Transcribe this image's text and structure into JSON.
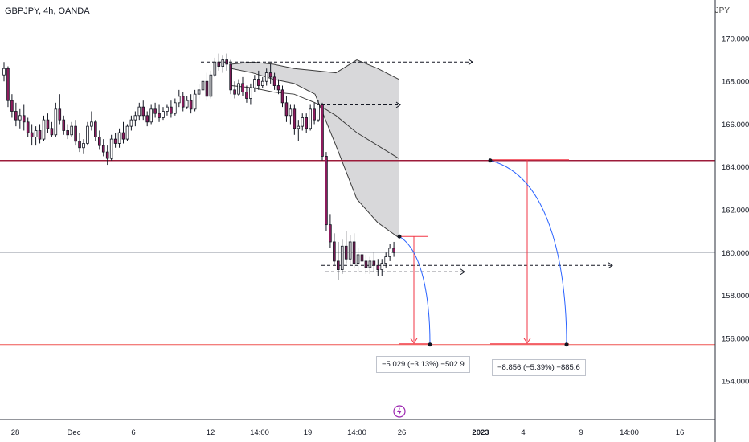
{
  "header": {
    "symbol": "GBPJPY, 4h, OANDA",
    "currency": "JPY"
  },
  "colors": {
    "candle_up": "#ffffff",
    "candle_down": "#8e1c5e",
    "candle_outline": "#131722",
    "support_line": "#ef5350",
    "resistance_line": "#9c1b3a",
    "measure_line": "#f23645",
    "arrow": "#2962ff",
    "band_fill": "#d4d4d6"
  },
  "measurements": [
    {
      "label": "−5.029 (−3.13%) −502.9"
    },
    {
      "label": "−8.856 (−5.39%) −885.6"
    }
  ],
  "chart_data": {
    "type": "candlestick",
    "title": "GBPJPY, 4h, OANDA",
    "ylabel": "JPY",
    "ylim": [
      152.2,
      171.8
    ],
    "y_ticks": [
      {
        "value": 170,
        "label": "170.000"
      },
      {
        "value": 168,
        "label": "168.000"
      },
      {
        "value": 166,
        "label": "166.000"
      },
      {
        "value": 164,
        "label": "164.000"
      },
      {
        "value": 162,
        "label": "162.000"
      },
      {
        "value": 160,
        "label": "160.000"
      },
      {
        "value": 158,
        "label": "158.000"
      },
      {
        "value": 156,
        "label": "156.000"
      },
      {
        "value": 154,
        "label": "154.000"
      }
    ],
    "x_ticks": [
      {
        "label": "28",
        "bold": false
      },
      {
        "label": "Dec",
        "bold": false
      },
      {
        "label": "6",
        "bold": false
      },
      {
        "label": "12",
        "bold": false
      },
      {
        "label": "14:00",
        "bold": false
      },
      {
        "label": "19",
        "bold": false
      },
      {
        "label": "14:00",
        "bold": false
      },
      {
        "label": "26",
        "bold": false
      },
      {
        "label": "2023",
        "bold": true
      },
      {
        "label": "4",
        "bold": false
      },
      {
        "label": "9",
        "bold": false
      },
      {
        "label": "14:00",
        "bold": false
      },
      {
        "label": "16",
        "bold": false
      }
    ],
    "horizontal_lines": [
      {
        "name": "resistance",
        "value": 164.3
      },
      {
        "name": "support",
        "value": 155.7
      },
      {
        "name": "current-price",
        "value": 160.0
      }
    ],
    "projection_band": {
      "upper": [
        168.8,
        168.9,
        168.8,
        168.6,
        168.5,
        168.4,
        169.0,
        168.6,
        168.1
      ],
      "middle": [
        167.8,
        167.7,
        167.5,
        167.4,
        167.0,
        166.4,
        165.6,
        165.0,
        164.4
      ],
      "lower": [
        168.6,
        168.4,
        168.1,
        167.9,
        167.4,
        165.0,
        162.5,
        161.4,
        160.7
      ]
    },
    "candles": [
      [
        168.3,
        168.9,
        168.0,
        168.6
      ],
      [
        168.6,
        168.7,
        166.8,
        167.1
      ],
      [
        167.1,
        167.4,
        166.3,
        166.6
      ],
      [
        166.6,
        167.0,
        165.9,
        166.2
      ],
      [
        166.2,
        166.7,
        165.8,
        166.4
      ],
      [
        166.4,
        166.9,
        165.7,
        166.1
      ],
      [
        166.1,
        166.3,
        165.4,
        165.6
      ],
      [
        165.6,
        166.0,
        165.0,
        165.4
      ],
      [
        165.4,
        165.9,
        165.0,
        165.7
      ],
      [
        165.7,
        166.0,
        165.1,
        165.3
      ],
      [
        165.3,
        166.4,
        165.2,
        166.2
      ],
      [
        166.2,
        166.5,
        165.6,
        165.8
      ],
      [
        165.8,
        166.1,
        165.4,
        165.5
      ],
      [
        165.5,
        167.0,
        165.4,
        166.7
      ],
      [
        166.7,
        167.4,
        166.0,
        166.2
      ],
      [
        166.2,
        166.4,
        165.5,
        165.7
      ],
      [
        165.7,
        166.0,
        165.3,
        165.5
      ],
      [
        165.5,
        166.1,
        165.4,
        165.9
      ],
      [
        165.9,
        166.2,
        165.0,
        165.2
      ],
      [
        165.2,
        165.6,
        164.7,
        164.9
      ],
      [
        164.9,
        165.3,
        164.6,
        165.1
      ],
      [
        165.1,
        166.1,
        165.0,
        165.9
      ],
      [
        165.9,
        166.6,
        165.7,
        166.1
      ],
      [
        166.1,
        166.2,
        165.2,
        165.4
      ],
      [
        165.4,
        165.7,
        164.8,
        165.0
      ],
      [
        165.0,
        165.3,
        164.5,
        164.7
      ],
      [
        164.7,
        165.0,
        164.1,
        164.4
      ],
      [
        164.4,
        165.5,
        164.3,
        165.3
      ],
      [
        165.3,
        165.6,
        164.9,
        165.1
      ],
      [
        165.1,
        165.8,
        164.9,
        165.6
      ],
      [
        165.6,
        166.1,
        165.1,
        165.3
      ],
      [
        165.3,
        166.0,
        165.2,
        165.9
      ],
      [
        165.9,
        166.4,
        165.7,
        166.2
      ],
      [
        166.2,
        166.6,
        165.9,
        166.4
      ],
      [
        166.4,
        167.0,
        166.2,
        166.8
      ],
      [
        166.8,
        167.1,
        166.2,
        166.4
      ],
      [
        166.4,
        166.6,
        165.9,
        166.1
      ],
      [
        166.1,
        166.9,
        166.0,
        166.7
      ],
      [
        166.7,
        167.0,
        166.3,
        166.5
      ],
      [
        166.5,
        166.9,
        166.1,
        166.3
      ],
      [
        166.3,
        166.8,
        166.2,
        166.6
      ],
      [
        166.6,
        166.9,
        166.4,
        166.8
      ],
      [
        166.8,
        167.1,
        166.3,
        166.5
      ],
      [
        166.5,
        167.2,
        166.4,
        167.0
      ],
      [
        167.0,
        167.6,
        166.8,
        167.3
      ],
      [
        167.3,
        167.5,
        166.6,
        166.8
      ],
      [
        166.8,
        167.3,
        166.7,
        167.1
      ],
      [
        167.1,
        167.4,
        166.5,
        166.7
      ],
      [
        166.7,
        167.6,
        166.6,
        167.4
      ],
      [
        167.4,
        167.9,
        167.2,
        167.6
      ],
      [
        167.6,
        168.2,
        167.4,
        168.0
      ],
      [
        168.0,
        168.4,
        167.1,
        167.3
      ],
      [
        167.3,
        168.5,
        167.2,
        168.3
      ],
      [
        168.3,
        169.1,
        168.2,
        168.9
      ],
      [
        168.9,
        169.3,
        168.5,
        168.7
      ],
      [
        168.7,
        169.2,
        168.4,
        169.0
      ],
      [
        169.0,
        169.3,
        168.5,
        168.8
      ],
      [
        168.8,
        169.0,
        167.4,
        167.6
      ],
      [
        167.6,
        168.0,
        167.2,
        167.4
      ],
      [
        167.4,
        168.1,
        167.3,
        167.9
      ],
      [
        167.9,
        168.2,
        167.3,
        167.5
      ],
      [
        167.5,
        167.8,
        167.0,
        167.2
      ],
      [
        167.2,
        167.9,
        166.9,
        167.7
      ],
      [
        167.7,
        168.3,
        167.5,
        168.1
      ],
      [
        168.1,
        168.5,
        167.6,
        167.8
      ],
      [
        167.8,
        168.2,
        167.7,
        168.0
      ],
      [
        168.0,
        168.6,
        167.8,
        168.4
      ],
      [
        168.4,
        168.8,
        167.9,
        168.2
      ],
      [
        168.2,
        168.4,
        167.6,
        167.8
      ],
      [
        167.8,
        168.1,
        167.4,
        167.6
      ],
      [
        167.6,
        167.8,
        166.8,
        167.0
      ],
      [
        167.0,
        167.3,
        166.1,
        166.4
      ],
      [
        166.4,
        166.9,
        166.0,
        166.7
      ],
      [
        166.7,
        166.9,
        165.5,
        165.8
      ],
      [
        165.8,
        166.2,
        165.2,
        165.9
      ],
      [
        165.9,
        166.5,
        165.7,
        166.3
      ],
      [
        166.3,
        166.5,
        165.6,
        165.8
      ],
      [
        165.8,
        166.9,
        165.7,
        166.7
      ],
      [
        166.7,
        167.0,
        166.0,
        166.2
      ],
      [
        166.2,
        167.1,
        166.1,
        166.9
      ],
      [
        166.9,
        167.0,
        164.3,
        164.5
      ],
      [
        164.5,
        164.7,
        161.0,
        161.3
      ],
      [
        161.3,
        161.8,
        160.2,
        160.5
      ],
      [
        160.5,
        160.9,
        159.4,
        159.6
      ],
      [
        159.6,
        160.5,
        158.7,
        159.2
      ],
      [
        159.2,
        160.6,
        159.0,
        160.3
      ],
      [
        160.3,
        161.0,
        159.5,
        159.7
      ],
      [
        159.7,
        160.8,
        159.4,
        160.5
      ],
      [
        160.5,
        160.9,
        159.3,
        159.5
      ],
      [
        159.5,
        160.2,
        159.1,
        159.9
      ],
      [
        159.9,
        160.4,
        159.4,
        159.6
      ],
      [
        159.6,
        159.9,
        159.0,
        159.3
      ],
      [
        159.3,
        159.8,
        159.0,
        159.6
      ],
      [
        159.6,
        160.0,
        159.1,
        159.4
      ],
      [
        159.4,
        159.7,
        158.9,
        159.2
      ],
      [
        159.2,
        159.7,
        158.9,
        159.5
      ],
      [
        159.5,
        160.0,
        159.3,
        159.8
      ],
      [
        159.8,
        160.4,
        159.6,
        160.2
      ],
      [
        160.2,
        160.5,
        159.8,
        160.0
      ]
    ]
  }
}
